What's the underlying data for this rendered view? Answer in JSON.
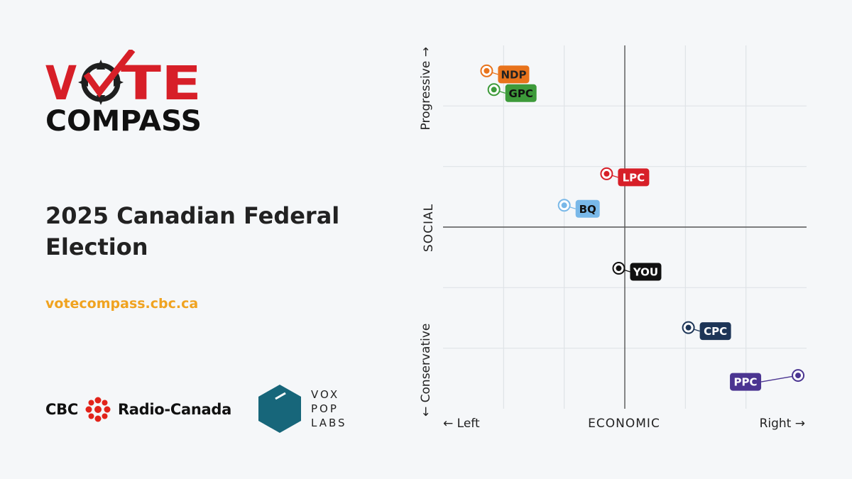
{
  "logo": {
    "line1": "VOTE",
    "line2": "COMPASS"
  },
  "title": "2025 Canadian Federal Election",
  "url": "votecompass.cbc.ca",
  "partners": {
    "cbc_left": "CBC",
    "cbc_right": "Radio-Canada",
    "vox_lines": [
      "VOX",
      "POP",
      "LABS"
    ]
  },
  "chart_data": {
    "type": "scatter",
    "x_axis": {
      "title": "ECONOMIC",
      "left_label": "← Left",
      "right_label": "Right →",
      "range": [
        -3,
        3
      ]
    },
    "y_axis": {
      "title": "SOCIAL",
      "top_label": "Progressive →",
      "bottom_label": "← Conservative",
      "range": [
        -3,
        3
      ]
    },
    "grid": true,
    "points": [
      {
        "label": "NDP",
        "x": -2.28,
        "y": 2.58,
        "color": "#e8731c",
        "text_color": "#222222"
      },
      {
        "label": "GPC",
        "x": -2.16,
        "y": 2.27,
        "color": "#3d9a3a",
        "text_color": "#111111"
      },
      {
        "label": "LPC",
        "x": -0.3,
        "y": 0.88,
        "color": "#d71f28",
        "text_color": "#ffffff"
      },
      {
        "label": "BQ",
        "x": -1.0,
        "y": 0.36,
        "color": "#79b8e8",
        "text_color": "#111111"
      },
      {
        "label": "YOU",
        "x": -0.1,
        "y": -0.68,
        "color": "#111111",
        "text_color": "#ffffff"
      },
      {
        "label": "CPC",
        "x": 1.05,
        "y": -1.66,
        "color": "#1d3557",
        "text_color": "#ffffff"
      },
      {
        "label": "PPC",
        "x": 2.86,
        "y": -2.45,
        "color": "#4b3591",
        "text_color": "#ffffff"
      }
    ]
  }
}
